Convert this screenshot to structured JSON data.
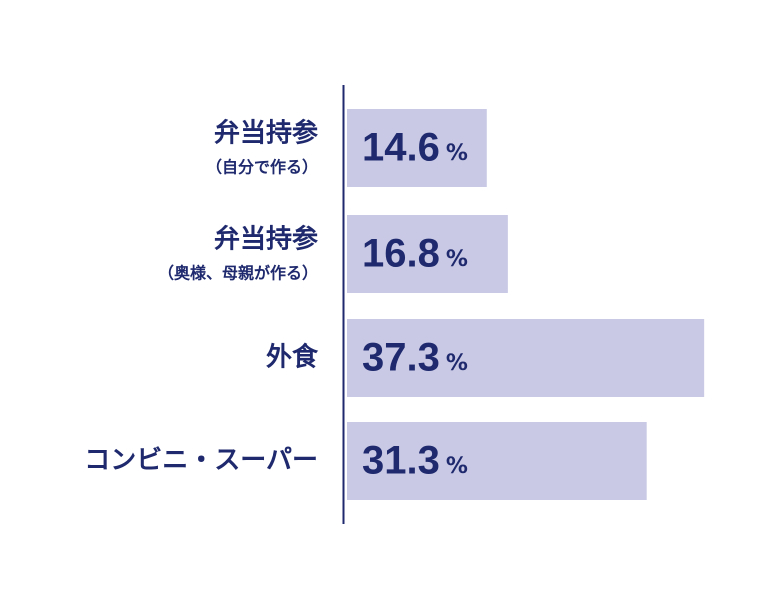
{
  "chart_data": {
    "type": "hbar",
    "categories": [
      "弁当持参",
      "弁当持参",
      "外食",
      "コンビニ・スーパー"
    ],
    "category_notes": [
      "（自分で作る）",
      "（奥様、母親が作る）",
      null,
      null
    ],
    "values": [
      14.6,
      16.8,
      37.3,
      31.3
    ],
    "unit": "%",
    "color": "#c9c9e5",
    "text_color": "#1f2a6e",
    "xlim": [
      0,
      40
    ]
  }
}
